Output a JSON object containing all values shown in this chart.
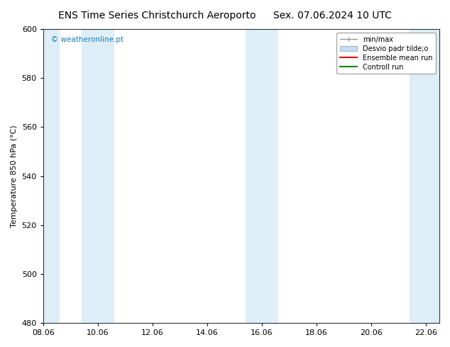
{
  "title_left": "ENS Time Series Christchurch Aeroporto",
  "title_right": "Sex. 07.06.2024 10 UTC",
  "ylabel": "Temperature 850 hPa (°C)",
  "xlim": [
    0,
    14.5
  ],
  "ylim": [
    480,
    600
  ],
  "yticks": [
    480,
    500,
    520,
    540,
    560,
    580,
    600
  ],
  "xtick_positions": [
    0,
    2,
    4,
    6,
    8,
    10,
    12,
    14
  ],
  "xtick_labels": [
    "08.06",
    "10.06",
    "12.06",
    "14.06",
    "16.06",
    "18.06",
    "20.06",
    "22.06"
  ],
  "shaded_bands": [
    {
      "x_start": -0.1,
      "x_end": 0.6,
      "color": "#ddeef8"
    },
    {
      "x_start": 1.4,
      "x_end": 2.6,
      "color": "#ddeef8"
    },
    {
      "x_start": 7.4,
      "x_end": 8.6,
      "color": "#ddeef8"
    },
    {
      "x_start": 13.4,
      "x_end": 14.6,
      "color": "#ddeef8"
    }
  ],
  "legend_entries": [
    {
      "label": "min/max",
      "color": "#aaaaaa",
      "type": "errorbar"
    },
    {
      "label": "Desvio padr tilde;o",
      "color": "#ccdded",
      "type": "box"
    },
    {
      "label": "Ensemble mean run",
      "color": "#dd0000",
      "type": "line"
    },
    {
      "label": "Controll run",
      "color": "#008800",
      "type": "line"
    }
  ],
  "watermark_text": "© weatheronline.pt",
  "watermark_color": "#1a7abf",
  "background_color": "#ffffff",
  "plot_bg_color": "#ffffff",
  "title_fontsize": 10,
  "axis_fontsize": 8,
  "tick_fontsize": 8,
  "legend_fontsize": 7
}
